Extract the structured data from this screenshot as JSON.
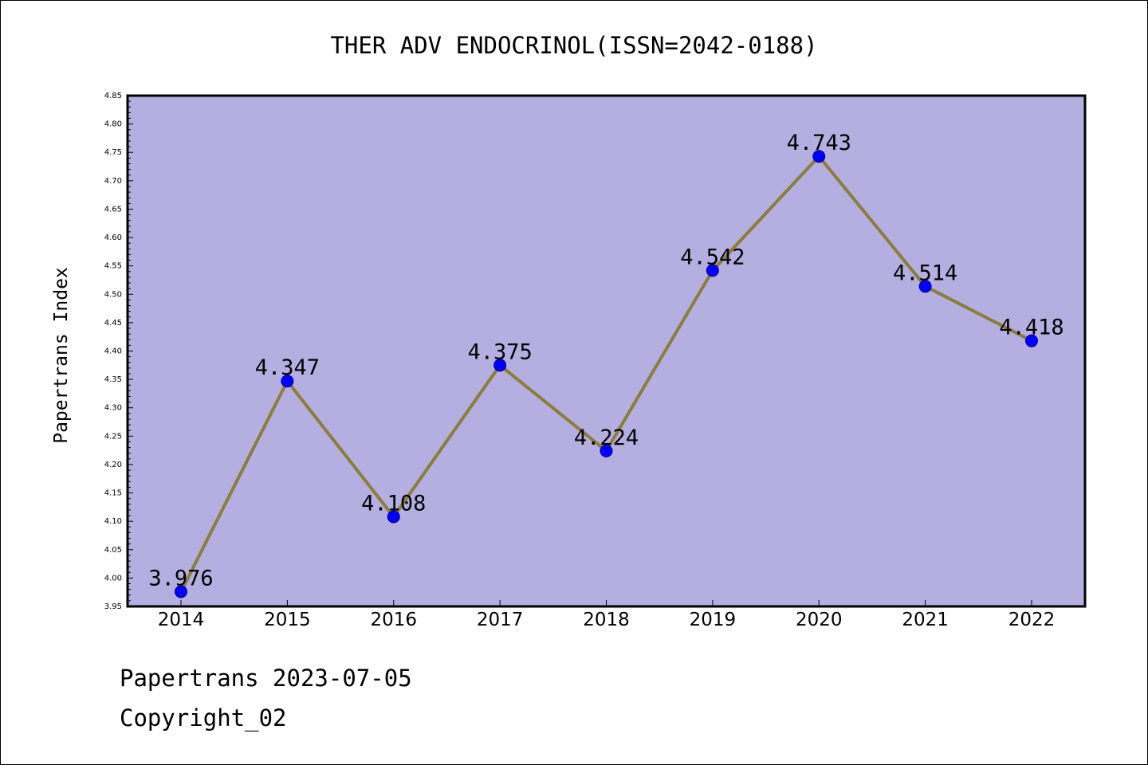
{
  "chart_data": {
    "type": "line",
    "title": "THER ADV ENDOCRINOL(ISSN=2042-0188)",
    "xlabel": "",
    "ylabel": "Papertrans Index",
    "x": [
      "2014",
      "2015",
      "2016",
      "2017",
      "2018",
      "2019",
      "2020",
      "2021",
      "2022"
    ],
    "series": [
      {
        "values": [
          3.976,
          4.347,
          4.108,
          4.375,
          4.224,
          4.542,
          4.743,
          4.514,
          4.418
        ],
        "labels": [
          "3.976",
          "4.347",
          "4.108",
          "4.375",
          "4.224",
          "4.542",
          "4.743",
          "4.514",
          "4.418"
        ],
        "line_color": "#8b7d3a",
        "marker_color": "#0000ff"
      }
    ],
    "ylim": [
      3.95,
      4.85
    ],
    "yticks": [
      "3.95",
      "4.00",
      "4.05",
      "4.10",
      "4.15",
      "4.20",
      "4.25",
      "4.30",
      "4.35",
      "4.40",
      "4.45",
      "4.50",
      "4.55",
      "4.60",
      "4.65",
      "4.70",
      "4.75",
      "4.80",
      "4.85"
    ],
    "grid": false,
    "legend": "none",
    "plot_background": "#b5aee1"
  },
  "footer": {
    "line1": "Papertrans 2023-07-05",
    "line2": "Copyright_02"
  }
}
